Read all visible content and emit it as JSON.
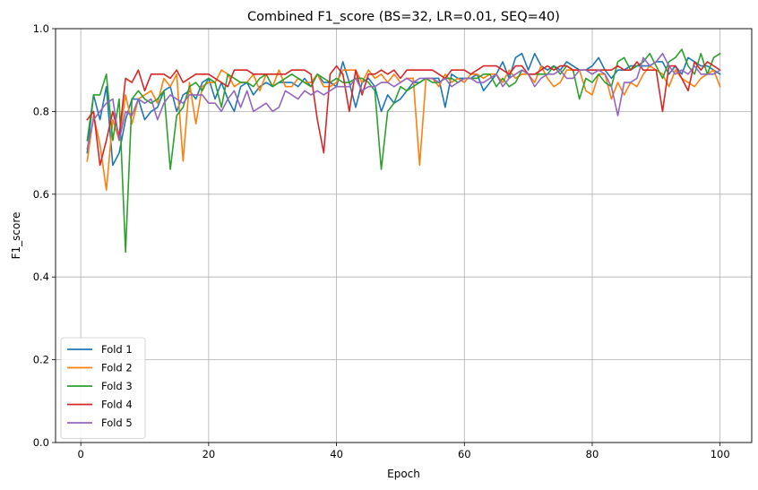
{
  "chart_data": {
    "type": "line",
    "title": "Combined F1_score (BS=32, LR=0.01, SEQ=40)",
    "xlabel": "Epoch",
    "ylabel": "F1_score",
    "xlim": [
      -3.95,
      104.95
    ],
    "ylim": [
      0.0,
      1.0
    ],
    "xticks": [
      0,
      20,
      40,
      60,
      80,
      100
    ],
    "yticks": [
      0.0,
      0.2,
      0.4,
      0.6,
      0.8,
      1.0
    ],
    "xtick_labels": [
      "0",
      "20",
      "40",
      "60",
      "80",
      "100"
    ],
    "ytick_labels": [
      "0.0",
      "0.2",
      "0.4",
      "0.6",
      "0.8",
      "1.0"
    ],
    "grid": true,
    "legend_position": "lower-left",
    "series": [
      {
        "name": "Fold 1",
        "color": "#1f77b4",
        "values": [
          0.7,
          0.84,
          0.78,
          0.86,
          0.67,
          0.7,
          0.78,
          0.83,
          0.83,
          0.78,
          0.8,
          0.81,
          0.85,
          0.86,
          0.8,
          0.84,
          0.85,
          0.83,
          0.87,
          0.88,
          0.83,
          0.87,
          0.83,
          0.8,
          0.86,
          0.87,
          0.84,
          0.86,
          0.87,
          0.86,
          0.87,
          0.87,
          0.87,
          0.86,
          0.88,
          0.86,
          0.89,
          0.87,
          0.87,
          0.86,
          0.92,
          0.87,
          0.81,
          0.87,
          0.88,
          0.86,
          0.8,
          0.84,
          0.82,
          0.83,
          0.85,
          0.87,
          0.87,
          0.88,
          0.88,
          0.88,
          0.81,
          0.89,
          0.88,
          0.88,
          0.88,
          0.89,
          0.85,
          0.87,
          0.89,
          0.92,
          0.88,
          0.93,
          0.94,
          0.9,
          0.94,
          0.91,
          0.9,
          0.91,
          0.9,
          0.92,
          0.91,
          0.9,
          0.9,
          0.91,
          0.93,
          0.9,
          0.88,
          0.9,
          0.9,
          0.91,
          0.91,
          0.91,
          0.91,
          0.92,
          0.92,
          0.89,
          0.91,
          0.89,
          0.93,
          0.92,
          0.91,
          0.91,
          0.9,
          0.89
        ]
      },
      {
        "name": "Fold 2",
        "color": "#ff7f0e",
        "values": [
          0.68,
          0.79,
          0.72,
          0.61,
          0.78,
          0.73,
          0.84,
          0.77,
          0.83,
          0.84,
          0.85,
          0.82,
          0.88,
          0.86,
          0.89,
          0.68,
          0.87,
          0.77,
          0.86,
          0.87,
          0.87,
          0.9,
          0.89,
          0.86,
          0.87,
          0.87,
          0.89,
          0.85,
          0.89,
          0.86,
          0.9,
          0.86,
          0.86,
          0.88,
          0.87,
          0.87,
          0.89,
          0.86,
          0.86,
          0.87,
          0.9,
          0.9,
          0.9,
          0.87,
          0.9,
          0.88,
          0.89,
          0.87,
          0.89,
          0.87,
          0.88,
          0.88,
          0.67,
          0.88,
          0.88,
          0.86,
          0.89,
          0.87,
          0.88,
          0.87,
          0.89,
          0.89,
          0.88,
          0.89,
          0.89,
          0.87,
          0.9,
          0.88,
          0.89,
          0.89,
          0.87,
          0.91,
          0.88,
          0.86,
          0.87,
          0.9,
          0.9,
          0.9,
          0.85,
          0.84,
          0.89,
          0.89,
          0.83,
          0.87,
          0.84,
          0.87,
          0.86,
          0.89,
          0.91,
          0.9,
          0.89,
          0.86,
          0.9,
          0.88,
          0.87,
          0.86,
          0.88,
          0.89,
          0.9,
          0.86
        ]
      },
      {
        "name": "Fold 3",
        "color": "#2ca02c",
        "values": [
          0.73,
          0.84,
          0.84,
          0.89,
          0.73,
          0.83,
          0.46,
          0.83,
          0.85,
          0.83,
          0.82,
          0.83,
          0.85,
          0.66,
          0.79,
          0.81,
          0.86,
          0.87,
          0.85,
          0.88,
          0.87,
          0.81,
          0.89,
          0.88,
          0.87,
          0.87,
          0.86,
          0.88,
          0.89,
          0.86,
          0.87,
          0.88,
          0.89,
          0.88,
          0.87,
          0.86,
          0.89,
          0.88,
          0.87,
          0.88,
          0.87,
          0.87,
          0.88,
          0.88,
          0.87,
          0.85,
          0.66,
          0.8,
          0.82,
          0.86,
          0.85,
          0.86,
          0.87,
          0.88,
          0.87,
          0.87,
          0.88,
          0.88,
          0.87,
          0.88,
          0.88,
          0.88,
          0.89,
          0.89,
          0.86,
          0.88,
          0.86,
          0.87,
          0.9,
          0.89,
          0.89,
          0.89,
          0.89,
          0.91,
          0.89,
          0.91,
          0.9,
          0.83,
          0.88,
          0.87,
          0.89,
          0.87,
          0.86,
          0.92,
          0.93,
          0.9,
          0.91,
          0.92,
          0.94,
          0.91,
          0.88,
          0.92,
          0.93,
          0.95,
          0.91,
          0.89,
          0.94,
          0.89,
          0.93,
          0.94
        ]
      },
      {
        "name": "Fold 4",
        "color": "#d62728",
        "values": [
          0.78,
          0.8,
          0.67,
          0.73,
          0.8,
          0.74,
          0.88,
          0.87,
          0.9,
          0.85,
          0.89,
          0.89,
          0.89,
          0.88,
          0.9,
          0.87,
          0.88,
          0.89,
          0.89,
          0.89,
          0.88,
          0.87,
          0.86,
          0.9,
          0.9,
          0.9,
          0.89,
          0.89,
          0.89,
          0.89,
          0.89,
          0.89,
          0.9,
          0.9,
          0.9,
          0.89,
          0.78,
          0.7,
          0.89,
          0.91,
          0.89,
          0.8,
          0.9,
          0.84,
          0.89,
          0.89,
          0.9,
          0.89,
          0.9,
          0.88,
          0.9,
          0.9,
          0.9,
          0.9,
          0.9,
          0.89,
          0.88,
          0.9,
          0.9,
          0.9,
          0.89,
          0.9,
          0.91,
          0.91,
          0.91,
          0.9,
          0.89,
          0.91,
          0.91,
          0.89,
          0.89,
          0.9,
          0.91,
          0.9,
          0.91,
          0.91,
          0.9,
          0.9,
          0.9,
          0.9,
          0.9,
          0.9,
          0.9,
          0.91,
          0.9,
          0.9,
          0.92,
          0.9,
          0.9,
          0.9,
          0.8,
          0.91,
          0.91,
          0.88,
          0.85,
          0.92,
          0.9,
          0.92,
          0.91,
          0.9
        ]
      },
      {
        "name": "Fold 5",
        "color": "#9467bd",
        "values": [
          0.71,
          0.78,
          0.8,
          0.82,
          0.83,
          0.73,
          0.8,
          0.79,
          0.83,
          0.82,
          0.83,
          0.78,
          0.82,
          0.84,
          0.83,
          0.82,
          0.84,
          0.84,
          0.84,
          0.82,
          0.82,
          0.8,
          0.83,
          0.85,
          0.81,
          0.85,
          0.8,
          0.81,
          0.82,
          0.8,
          0.81,
          0.85,
          0.84,
          0.83,
          0.85,
          0.84,
          0.85,
          0.84,
          0.85,
          0.86,
          0.86,
          0.86,
          0.88,
          0.85,
          0.86,
          0.86,
          0.87,
          0.87,
          0.86,
          0.87,
          0.88,
          0.87,
          0.88,
          0.88,
          0.88,
          0.87,
          0.88,
          0.86,
          0.87,
          0.88,
          0.88,
          0.87,
          0.87,
          0.88,
          0.89,
          0.86,
          0.88,
          0.89,
          0.9,
          0.89,
          0.86,
          0.88,
          0.89,
          0.89,
          0.9,
          0.88,
          0.88,
          0.9,
          0.9,
          0.89,
          0.9,
          0.89,
          0.86,
          0.79,
          0.87,
          0.87,
          0.88,
          0.93,
          0.91,
          0.92,
          0.94,
          0.91,
          0.89,
          0.9,
          0.89,
          0.91,
          0.89,
          0.89,
          0.89,
          0.9
        ]
      }
    ]
  }
}
